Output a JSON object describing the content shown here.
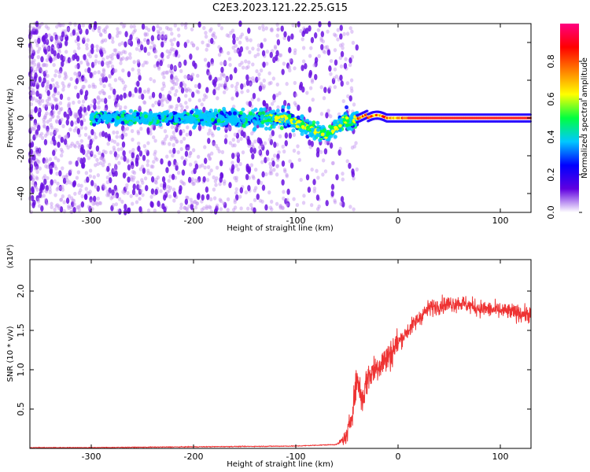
{
  "title": "C2E3.2023.121.22.25.G15",
  "chart_data": [
    {
      "type": "heatmap",
      "name": "spectrogram",
      "xlabel": "Height of straight line (km)",
      "ylabel": "Frequency (Hz)",
      "xlim": [
        -360,
        130
      ],
      "ylim": [
        -50,
        50
      ],
      "xticks": [
        -300,
        -200,
        -100,
        0,
        100
      ],
      "yticks": [
        -40,
        -20,
        0,
        20,
        40
      ],
      "xtick_labels": [
        "-300",
        "-200",
        "-100",
        "0",
        "100"
      ],
      "ytick_labels": [
        "-40",
        "-20",
        "0",
        "20",
        "40"
      ],
      "colorbar": {
        "label": "Normalized spectral amplitude",
        "range": [
          0,
          1
        ],
        "ticks": [
          0.0,
          0.2,
          0.4,
          0.6,
          0.8
        ],
        "tick_labels": [
          "0.0",
          "0.2",
          "0.4",
          "0.6",
          "0.8"
        ],
        "colors": [
          "#ffffff",
          "#6000e0",
          "#0000ff",
          "#00c8ff",
          "#00ff40",
          "#ffff00",
          "#ff8000",
          "#ff0000",
          "#ff0080"
        ]
      },
      "features": {
        "noise_region_x": [
          -360,
          -60
        ],
        "carrier_freq_hz": 0,
        "dip_center_x": -70,
        "dip_min_freq_hz": -9,
        "stable_from_x": -10
      }
    },
    {
      "type": "line",
      "name": "snr",
      "xlabel": "Height of straight line (km)",
      "ylabel": "SNR (10 * v/v)",
      "yscale_label": "(x10⁴)",
      "xlim": [
        -360,
        130
      ],
      "ylim": [
        0,
        2.4
      ],
      "xticks": [
        -300,
        -200,
        -100,
        0,
        100
      ],
      "yticks": [
        0.5,
        1.0,
        1.5,
        2.0
      ],
      "xtick_labels": [
        "-300",
        "-200",
        "-100",
        "0",
        "100"
      ],
      "ytick_labels": [
        "0.5",
        "1.0",
        "1.5",
        "2.0"
      ],
      "color": "#ee3333",
      "series": [
        {
          "name": "SNR",
          "x": [
            -360,
            -300,
            -200,
            -100,
            -60,
            -50,
            -45,
            -40,
            -35,
            -30,
            -20,
            -10,
            0,
            10,
            20,
            30,
            40,
            60,
            80,
            100,
            130
          ],
          "y": [
            0.01,
            0.01,
            0.02,
            0.03,
            0.05,
            0.15,
            0.45,
            0.9,
            0.6,
            0.9,
            1.05,
            1.15,
            1.35,
            1.5,
            1.65,
            1.78,
            1.82,
            1.85,
            1.78,
            1.75,
            1.7
          ]
        }
      ]
    }
  ]
}
